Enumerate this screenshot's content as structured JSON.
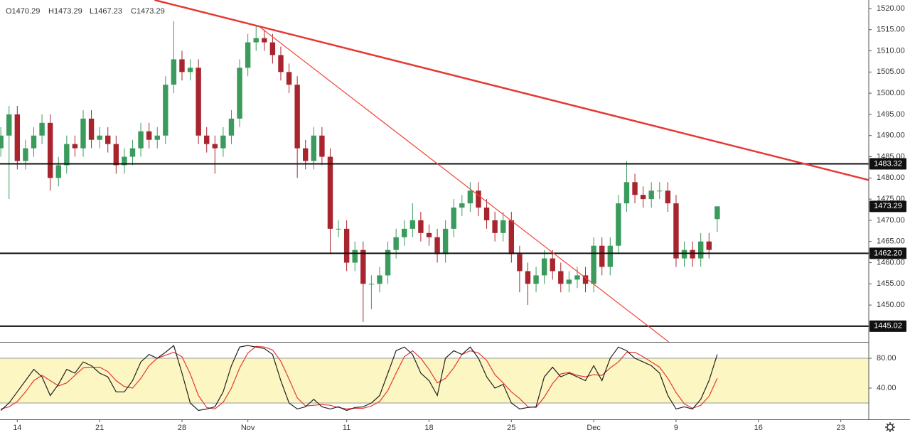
{
  "chart_data": {
    "type": "candlestick",
    "ohlc_legend": [
      "O1470.29",
      "H1473.29",
      "L1467.23",
      "C1473.29"
    ],
    "up_color": "#3a9b5c",
    "down_color": "#a8252d",
    "xlim": [
      -0.1,
      105.4
    ],
    "xticks": [
      {
        "value": 2,
        "label": "14"
      },
      {
        "value": 12,
        "label": "21"
      },
      {
        "value": 22,
        "label": "28"
      },
      {
        "value": 30,
        "label": "Nov"
      },
      {
        "value": 42,
        "label": "11"
      },
      {
        "value": 52,
        "label": "18"
      },
      {
        "value": 62,
        "label": "25"
      },
      {
        "value": 72,
        "label": "Dec"
      },
      {
        "value": 82,
        "label": "9"
      },
      {
        "value": 92,
        "label": "16"
      },
      {
        "value": 102,
        "label": "23"
      }
    ],
    "ylim": [
      1441.3,
      1522.0
    ],
    "yticks": [
      {
        "value": 1445,
        "label": "1445.00"
      },
      {
        "value": 1450,
        "label": "1450.00"
      },
      {
        "value": 1455,
        "label": "1455.00"
      },
      {
        "value": 1460,
        "label": "1460.00"
      },
      {
        "value": 1465,
        "label": "1465.00"
      },
      {
        "value": 1470,
        "label": "1470.00"
      },
      {
        "value": 1475,
        "label": "1475.00"
      },
      {
        "value": 1480,
        "label": "1480.00"
      },
      {
        "value": 1485,
        "label": "1485.00"
      },
      {
        "value": 1490,
        "label": "1490.00"
      },
      {
        "value": 1495,
        "label": "1495.00"
      },
      {
        "value": 1500,
        "label": "1500.00"
      },
      {
        "value": 1505,
        "label": "1505.00"
      },
      {
        "value": 1510,
        "label": "1510.00"
      },
      {
        "value": 1515,
        "label": "1515.00"
      },
      {
        "value": 1520,
        "label": "1520.00"
      }
    ],
    "open": [
      1487,
      1490,
      1495,
      1484,
      1487,
      1490,
      1493,
      1480,
      1483,
      1488,
      1487,
      1494,
      1489,
      1490,
      1488,
      1483,
      1485,
      1487,
      1491,
      1489,
      1490,
      1502,
      1508,
      1505,
      1506,
      1490,
      1488,
      1487,
      1490,
      1494,
      1506,
      1512,
      1513,
      1512,
      1509,
      1505,
      1502,
      1487,
      1484,
      1490,
      1485,
      1468,
      1468,
      1460,
      1463,
      1455,
      1455,
      1457,
      1463,
      1466,
      1468,
      1470,
      1467,
      1466,
      1462,
      1468,
      1473,
      1474,
      1477,
      1473,
      1470,
      1467,
      1470,
      1462,
      1458,
      1455,
      1457,
      1461,
      1458,
      1455,
      1456,
      1457,
      1455,
      1464,
      1459,
      1464,
      1474,
      1479,
      1476,
      1475,
      1477,
      1477,
      1474,
      1461,
      1463,
      1461,
      1465,
      1470.29
    ],
    "high": [
      1492,
      1497,
      1497,
      1489,
      1492,
      1495,
      1495,
      1485,
      1490,
      1490,
      1496,
      1496,
      1492,
      1492,
      1490,
      1487,
      1489,
      1493,
      1493,
      1492,
      1504,
      1517,
      1510,
      1508,
      1508,
      1492,
      1490,
      1492,
      1496,
      1508,
      1514,
      1516,
      1515,
      1514,
      1511,
      1507,
      1504,
      1489,
      1492,
      1492,
      1487,
      1470,
      1470,
      1465,
      1465,
      1457,
      1459,
      1465,
      1468,
      1470,
      1474,
      1472,
      1469,
      1468,
      1470,
      1475,
      1476,
      1479,
      1479,
      1475,
      1472,
      1472,
      1472,
      1464,
      1460,
      1459,
      1463,
      1463,
      1460,
      1458,
      1459,
      1459,
      1466,
      1466,
      1466,
      1476,
      1484,
      1481,
      1478,
      1479,
      1479,
      1479,
      1476,
      1465,
      1465,
      1467,
      1467,
      1473.29
    ],
    "low": [
      1485,
      1475,
      1482,
      1482,
      1485,
      1488,
      1477,
      1478,
      1481,
      1485,
      1485,
      1487,
      1487,
      1486,
      1481,
      1481,
      1483,
      1485,
      1487,
      1487,
      1488,
      1500,
      1503,
      1503,
      1488,
      1486,
      1481,
      1485,
      1488,
      1492,
      1504,
      1510,
      1510,
      1507,
      1503,
      1500,
      1480,
      1482,
      1482,
      1483,
      1462,
      1466,
      1458,
      1458,
      1446,
      1449,
      1453,
      1455,
      1461,
      1464,
      1466,
      1465,
      1464,
      1460,
      1460,
      1466,
      1471,
      1472,
      1471,
      1468,
      1465,
      1465,
      1460,
      1453,
      1450,
      1453,
      1455,
      1456,
      1453,
      1453,
      1454,
      1453,
      1453,
      1457,
      1457,
      1462,
      1472,
      1474,
      1473,
      1473,
      1475,
      1472,
      1459,
      1459,
      1459,
      1459,
      1461,
      1467.23
    ],
    "close": [
      1490,
      1495,
      1484,
      1487,
      1490,
      1493,
      1480,
      1483,
      1488,
      1487,
      1494,
      1489,
      1490,
      1488,
      1483,
      1485,
      1487,
      1491,
      1489,
      1490,
      1502,
      1508,
      1505,
      1506,
      1490,
      1488,
      1487,
      1490,
      1494,
      1506,
      1512,
      1513,
      1512,
      1509,
      1505,
      1502,
      1487,
      1484,
      1490,
      1485,
      1468,
      1468,
      1460,
      1463,
      1455,
      1455,
      1457,
      1463,
      1466,
      1468,
      1470,
      1467,
      1466,
      1462,
      1468,
      1473,
      1474,
      1477,
      1473,
      1470,
      1467,
      1470,
      1462,
      1458,
      1455,
      1457,
      1461,
      1458,
      1455,
      1456,
      1457,
      1455,
      1464,
      1459,
      1464,
      1474,
      1479,
      1476,
      1475,
      1477,
      1477,
      1474,
      1461,
      1463,
      1461,
      1465,
      1463,
      1473.29
    ],
    "levels": [
      {
        "value": 1483.32,
        "label": "1483.32"
      },
      {
        "value": 1462.2,
        "label": "1462.20"
      },
      {
        "value": 1445.02,
        "label": "1445.02"
      }
    ],
    "trendlines": [
      {
        "color": "#e53935",
        "width": 2.5,
        "x": [
          18.67,
          105.4
        ],
        "y": [
          1522.0,
          1479.5
        ]
      },
      {
        "color": "#f44336",
        "width": 1.2,
        "x": [
          31.2,
          81.1
        ],
        "y": [
          1516.0,
          1441.3
        ]
      }
    ],
    "oscillator": {
      "ylim": [
        -1.9,
        101.9
      ],
      "yticks": [
        {
          "value": 80,
          "label": "80.00"
        },
        {
          "value": 40,
          "label": "40.00"
        }
      ],
      "band": [
        20,
        80
      ],
      "band_color": "#fbf6c2",
      "series": [
        {
          "color": "#222222",
          "values": [
            10,
            20,
            35,
            50,
            65,
            55,
            30,
            45,
            65,
            60,
            75,
            70,
            60,
            55,
            35,
            35,
            50,
            75,
            85,
            80,
            88,
            97,
            60,
            20,
            10,
            12,
            15,
            35,
            70,
            95,
            97,
            95,
            93,
            85,
            50,
            20,
            12,
            15,
            25,
            15,
            12,
            15,
            10,
            14,
            15,
            20,
            30,
            60,
            90,
            95,
            85,
            60,
            50,
            30,
            80,
            90,
            85,
            95,
            80,
            55,
            40,
            45,
            20,
            12,
            14,
            15,
            55,
            68,
            55,
            60,
            55,
            50,
            70,
            50,
            80,
            95,
            90,
            80,
            75,
            70,
            60,
            30,
            12,
            15,
            12,
            25,
            50,
            85
          ]
        },
        {
          "color": "#e53935",
          "values": [
            12,
            15,
            22,
            35,
            50,
            57,
            50,
            43,
            47,
            57,
            67,
            68,
            68,
            62,
            50,
            42,
            40,
            53,
            70,
            80,
            84,
            88,
            82,
            59,
            30,
            14,
            12,
            21,
            40,
            67,
            87,
            96,
            95,
            91,
            76,
            52,
            27,
            16,
            17,
            18,
            17,
            14,
            12,
            13,
            13,
            16,
            22,
            37,
            60,
            82,
            90,
            80,
            65,
            47,
            53,
            67,
            85,
            90,
            87,
            77,
            58,
            47,
            35,
            26,
            15,
            14,
            28,
            46,
            59,
            61,
            57,
            55,
            58,
            57,
            67,
            75,
            88,
            88,
            82,
            75,
            68,
            53,
            34,
            19,
            13,
            17,
            29,
            53
          ]
        }
      ]
    }
  }
}
